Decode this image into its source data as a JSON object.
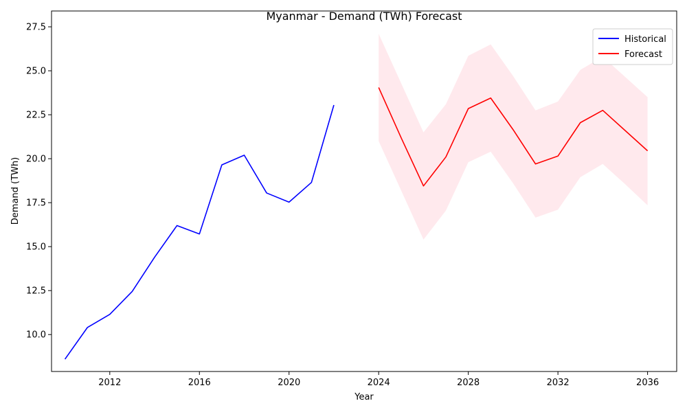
{
  "chart_data": {
    "type": "line",
    "title": "Myanmar - Demand (TWh) Forecast",
    "xlabel": "Year",
    "ylabel": "Demand (TWh)",
    "xlim": [
      2009.4,
      2037.3
    ],
    "ylim": [
      7.9,
      28.4
    ],
    "xticks": [
      2012,
      2016,
      2020,
      2024,
      2028,
      2032,
      2036
    ],
    "yticks": [
      10.0,
      12.5,
      15.0,
      17.5,
      20.0,
      22.5,
      25.0,
      27.5
    ],
    "ytick_labels": [
      "10.0",
      "12.5",
      "15.0",
      "17.5",
      "20.0",
      "22.5",
      "25.0",
      "27.5"
    ],
    "grid": false,
    "legend_position": "top-right",
    "series": [
      {
        "name": "Historical",
        "color": "#0000ff",
        "x": [
          2010,
          2011,
          2012,
          2013,
          2014,
          2015,
          2016,
          2017,
          2018,
          2019,
          2020,
          2021,
          2022
        ],
        "y": [
          8.6,
          10.4,
          11.15,
          12.45,
          14.4,
          16.2,
          15.72,
          19.65,
          20.2,
          18.05,
          17.53,
          18.65,
          23.05
        ]
      },
      {
        "name": "Forecast",
        "color": "#ff0000",
        "x": [
          2024,
          2025,
          2026,
          2027,
          2028,
          2029,
          2030,
          2031,
          2032,
          2033,
          2034,
          2035,
          2036
        ],
        "y": [
          24.05,
          21.2,
          18.45,
          20.1,
          22.85,
          23.45,
          21.65,
          19.7,
          20.15,
          22.05,
          22.75,
          21.6,
          20.45
        ]
      }
    ],
    "confidence_band": {
      "color": "#ffc0cb",
      "x": [
        2024,
        2025,
        2026,
        2027,
        2028,
        2029,
        2030,
        2031,
        2032,
        2033,
        2034,
        2035,
        2036
      ],
      "lower": [
        21.0,
        18.2,
        15.4,
        17.05,
        19.8,
        20.4,
        18.6,
        16.65,
        17.1,
        18.95,
        19.7,
        18.55,
        17.35
      ],
      "upper": [
        27.1,
        24.3,
        21.5,
        23.1,
        25.85,
        26.5,
        24.7,
        22.75,
        23.25,
        25.05,
        25.8,
        24.65,
        23.5
      ]
    }
  }
}
